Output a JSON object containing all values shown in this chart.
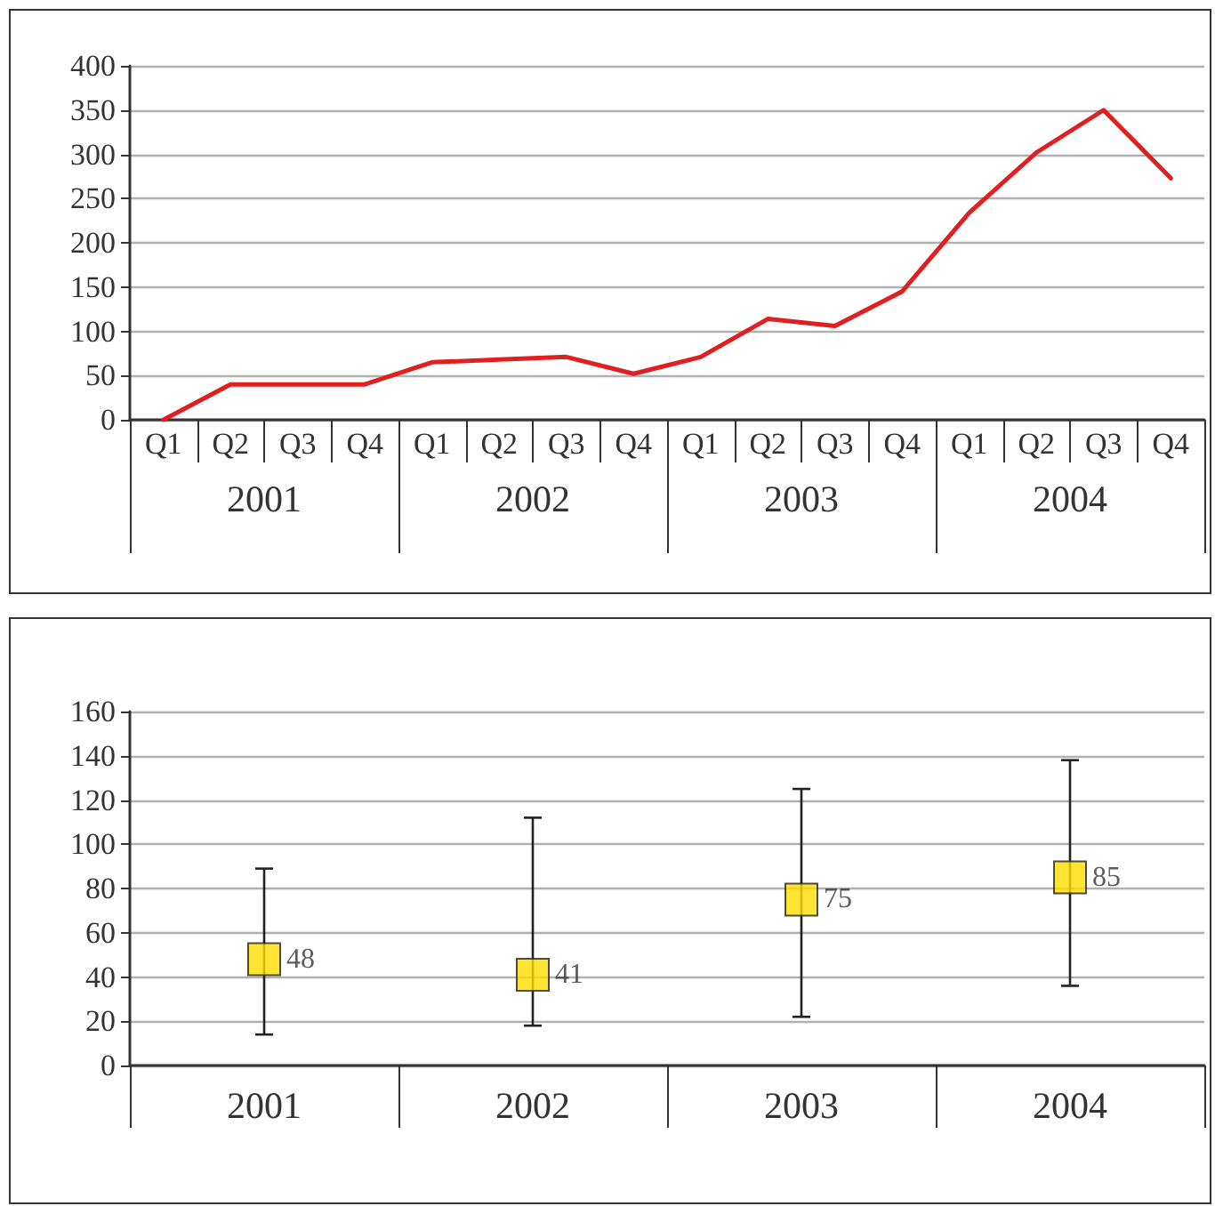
{
  "chart_data": [
    {
      "type": "line",
      "categories": [
        "Q1",
        "Q2",
        "Q3",
        "Q4",
        "Q1",
        "Q2",
        "Q3",
        "Q4",
        "Q1",
        "Q2",
        "Q3",
        "Q4",
        "Q1",
        "Q2",
        "Q3",
        "Q4"
      ],
      "series": [
        {
          "color": "#e02020",
          "values": [
            0,
            40,
            40,
            40,
            65,
            68,
            71,
            52,
            71,
            114,
            106,
            145,
            234,
            302,
            350,
            273
          ]
        }
      ],
      "annotations": [
        "2001",
        "2002",
        "2003",
        "2004"
      ],
      "ylim": [
        0,
        400
      ],
      "yticks": [
        0,
        50,
        100,
        150,
        200,
        250,
        300,
        350,
        400
      ],
      "grid": "y",
      "marker": "none",
      "line_style": "solid"
    },
    {
      "type": "scatter",
      "categories": [
        "2001",
        "2002",
        "2003",
        "2004"
      ],
      "series": [
        {
          "color": "#ffdd00",
          "values": [
            48,
            41,
            75,
            85
          ],
          "errors": [
            [
              14,
              89
            ],
            [
              18,
              112
            ],
            [
              22,
              125
            ],
            [
              36,
              138
            ]
          ]
        }
      ],
      "ylim": [
        0,
        160
      ],
      "yticks": [
        0,
        20,
        40,
        60,
        80,
        100,
        120,
        140,
        160
      ],
      "grid": "y",
      "marker": "square",
      "data_labels": true
    }
  ]
}
